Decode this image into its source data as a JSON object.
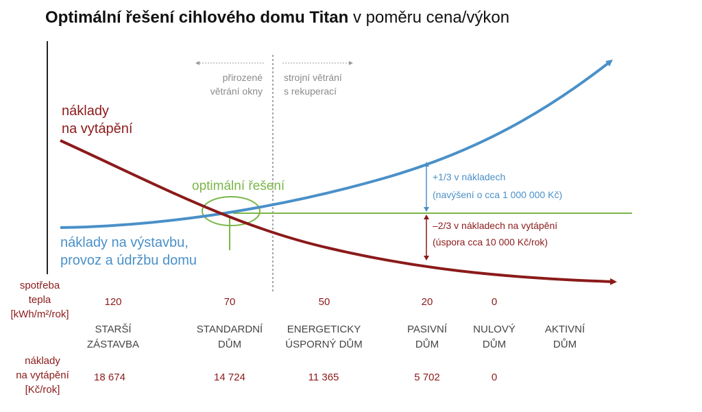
{
  "title": {
    "bold": "Optimální řešení cihlového domu Titan",
    "rest": " v poměru cena/výkon"
  },
  "colors": {
    "heating": "#8b1a1a",
    "construction": "#4a90c8",
    "optimal": "#7ab648",
    "text_gray": "#8a8a8a",
    "axis": "#222222"
  },
  "labels": {
    "heating_costs": [
      "náklady",
      "na vytápění"
    ],
    "construction_costs": [
      "náklady na výstavbu,",
      "provoz a údržbu domu"
    ],
    "optimal": "optimální řešení",
    "natural_vent": [
      "přirozené",
      "větrání okny"
    ],
    "mech_vent": [
      "strojní větrání",
      "s rekuperací"
    ],
    "plus_cost": [
      "+1/3 v nákladech",
      "(navýšení o cca 1 000 000 Kč)"
    ],
    "minus_cost": [
      "–2/3 v nákladech na vytápění",
      "(úspora cca 10 000 Kč/rok)"
    ]
  },
  "row_labels": {
    "consumption": [
      "spotřeba",
      "tepla",
      "[kWh/m²/rok]"
    ],
    "heating": [
      "náklady",
      "na vytápění",
      "[Kč/rok]"
    ]
  },
  "categories": [
    {
      "consumption": "120",
      "name": [
        "STARŠÍ",
        "ZÁSTAVBA"
      ],
      "cost": "18 674"
    },
    {
      "consumption": "70",
      "name": [
        "STANDARDNÍ",
        "DŮM"
      ],
      "cost": "14 724"
    },
    {
      "consumption": "50",
      "name": [
        "ENERGETICKY",
        "ÚSPORNÝ DŮM"
      ],
      "cost": "11 365"
    },
    {
      "consumption": "20",
      "name": [
        "PASIVNÍ",
        "DŮM"
      ],
      "cost": "5 702"
    },
    {
      "consumption": "0",
      "name": [
        "NULOVÝ",
        "DŮM"
      ],
      "cost": "0"
    },
    {
      "consumption": "",
      "name": [
        "AKTIVNÍ",
        "DŮM"
      ],
      "cost": ""
    }
  ]
}
